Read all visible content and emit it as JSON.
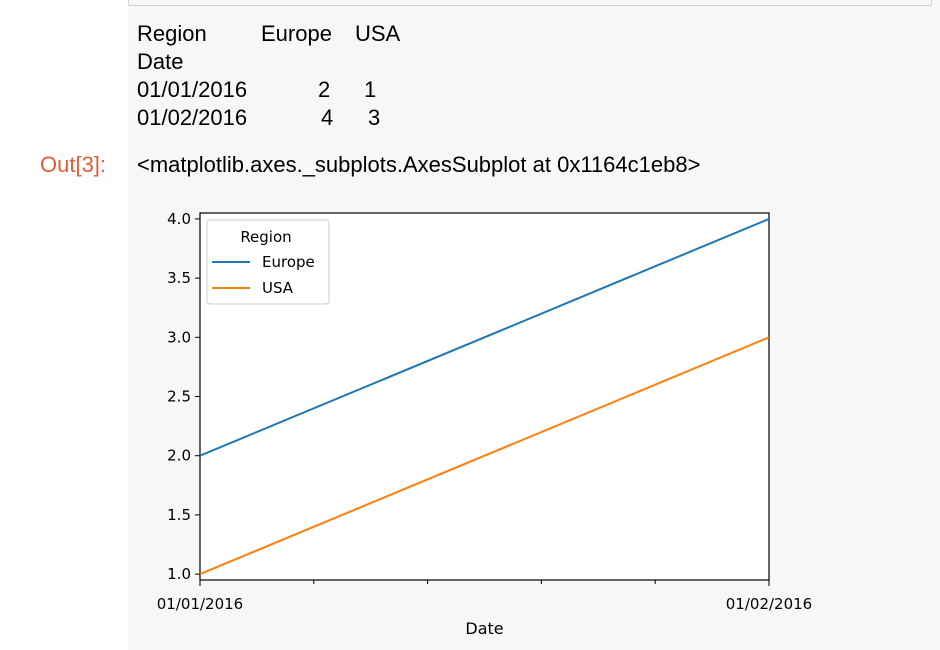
{
  "dataframe": {
    "header": {
      "index_name": "Region",
      "col1": "Europe",
      "col2": "USA"
    },
    "index_label": "Date",
    "rows": [
      {
        "date": "01/01/2016",
        "europe": "2",
        "usa": "1"
      },
      {
        "date": "01/02/2016",
        "europe": "4",
        "usa": "3"
      }
    ]
  },
  "output": {
    "prompt": "Out[3]:",
    "repr": "<matplotlib.axes._subplots.AxesSubplot at 0x1164c1eb8>"
  },
  "chart_data": {
    "type": "line",
    "x": [
      "01/01/2016",
      "01/02/2016"
    ],
    "series": [
      {
        "name": "Europe",
        "values": [
          2,
          4
        ],
        "color": "#1f77b4"
      },
      {
        "name": "USA",
        "values": [
          1,
          3
        ],
        "color": "#ff7f0e"
      }
    ],
    "xlabel": "Date",
    "ylabel": "",
    "ylim": [
      0.95,
      4.05
    ],
    "yticks": [
      1.0,
      1.5,
      2.0,
      2.5,
      3.0,
      3.5,
      4.0
    ],
    "ytick_labels": [
      "1.0",
      "1.5",
      "2.0",
      "2.5",
      "3.0",
      "3.5",
      "4.0"
    ],
    "xtick_labels": [
      "01/01/2016",
      "01/02/2016"
    ],
    "minor_xticks": 4,
    "legend": {
      "title": "Region",
      "placement": "upper-left"
    },
    "grid": false
  }
}
